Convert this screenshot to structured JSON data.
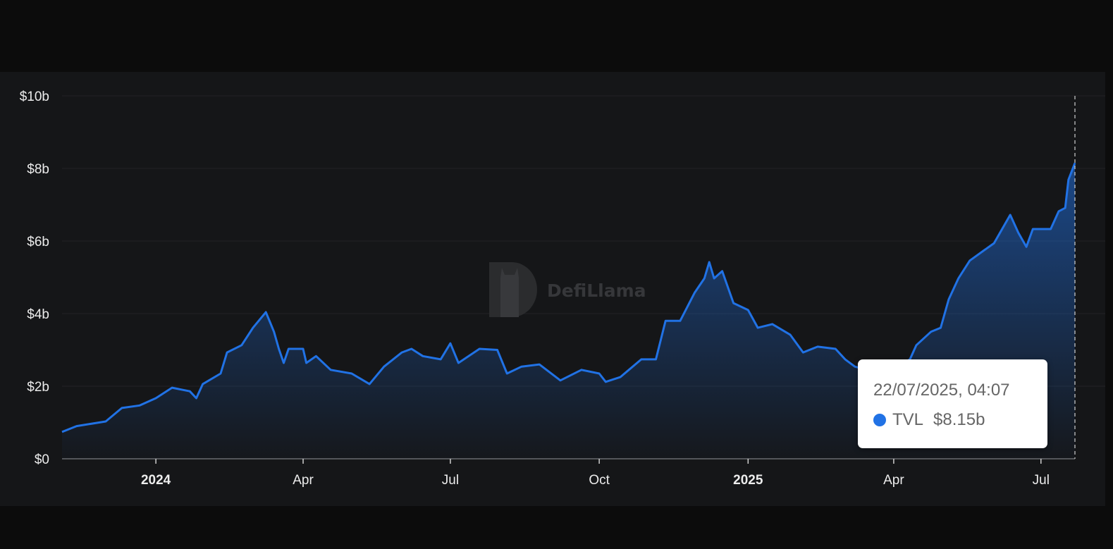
{
  "chart_data": {
    "type": "area",
    "watermark": "DefiLlama",
    "ylabel": "",
    "xlabel": "",
    "ylim": [
      0,
      10
    ],
    "y_unit": "billions USD",
    "y_ticks": [
      {
        "value": 0,
        "label": "$0"
      },
      {
        "value": 2,
        "label": "$2b"
      },
      {
        "value": 4,
        "label": "$4b"
      },
      {
        "value": 6,
        "label": "$6b"
      },
      {
        "value": 8,
        "label": "$8b"
      },
      {
        "value": 10,
        "label": "$10b"
      }
    ],
    "x_range": [
      "2023-11-04",
      "2025-07-22"
    ],
    "x_ticks": [
      {
        "date": "2024-01-01",
        "label": "2024",
        "bold": true
      },
      {
        "date": "2024-04-01",
        "label": "Apr",
        "bold": false
      },
      {
        "date": "2024-07-01",
        "label": "Jul",
        "bold": false
      },
      {
        "date": "2024-10-01",
        "label": "Oct",
        "bold": false
      },
      {
        "date": "2025-01-01",
        "label": "2025",
        "bold": true
      },
      {
        "date": "2025-04-01",
        "label": "Apr",
        "bold": false
      },
      {
        "date": "2025-07-01",
        "label": "Jul",
        "bold": false
      }
    ],
    "grid": true,
    "colors": {
      "line": "#2172e5",
      "background": "#151618",
      "grid": "#222326"
    },
    "series": [
      {
        "name": "TVL",
        "points": [
          [
            "2023-11-04",
            0.74
          ],
          [
            "2023-11-13",
            0.9
          ],
          [
            "2023-12-01",
            1.03
          ],
          [
            "2023-12-11",
            1.4
          ],
          [
            "2023-12-22",
            1.47
          ],
          [
            "2024-01-01",
            1.67
          ],
          [
            "2024-01-11",
            1.96
          ],
          [
            "2024-01-22",
            1.86
          ],
          [
            "2024-01-26",
            1.67
          ],
          [
            "2024-01-30",
            2.06
          ],
          [
            "2024-02-10",
            2.35
          ],
          [
            "2024-02-14",
            2.93
          ],
          [
            "2024-02-23",
            3.13
          ],
          [
            "2024-03-01",
            3.61
          ],
          [
            "2024-03-09",
            4.04
          ],
          [
            "2024-03-14",
            3.5
          ],
          [
            "2024-03-17",
            3.03
          ],
          [
            "2024-03-20",
            2.64
          ],
          [
            "2024-03-23",
            3.03
          ],
          [
            "2024-04-01",
            3.03
          ],
          [
            "2024-04-03",
            2.64
          ],
          [
            "2024-04-09",
            2.83
          ],
          [
            "2024-04-18",
            2.45
          ],
          [
            "2024-05-01",
            2.35
          ],
          [
            "2024-05-12",
            2.06
          ],
          [
            "2024-05-21",
            2.54
          ],
          [
            "2024-06-01",
            2.93
          ],
          [
            "2024-06-07",
            3.03
          ],
          [
            "2024-06-14",
            2.83
          ],
          [
            "2024-06-25",
            2.74
          ],
          [
            "2024-07-01",
            3.18
          ],
          [
            "2024-07-06",
            2.64
          ],
          [
            "2024-07-19",
            3.03
          ],
          [
            "2024-07-30",
            3.0
          ],
          [
            "2024-08-05",
            2.35
          ],
          [
            "2024-08-14",
            2.54
          ],
          [
            "2024-08-25",
            2.6
          ],
          [
            "2024-09-07",
            2.16
          ],
          [
            "2024-09-20",
            2.45
          ],
          [
            "2024-10-01",
            2.35
          ],
          [
            "2024-10-05",
            2.12
          ],
          [
            "2024-10-14",
            2.25
          ],
          [
            "2024-10-27",
            2.74
          ],
          [
            "2024-11-05",
            2.74
          ],
          [
            "2024-11-11",
            3.8
          ],
          [
            "2024-11-20",
            3.8
          ],
          [
            "2024-11-29",
            4.58
          ],
          [
            "2024-12-05",
            4.97
          ],
          [
            "2024-12-08",
            5.42
          ],
          [
            "2024-12-11",
            4.97
          ],
          [
            "2024-12-16",
            5.17
          ],
          [
            "2024-12-23",
            4.29
          ],
          [
            "2025-01-01",
            4.1
          ],
          [
            "2025-01-07",
            3.61
          ],
          [
            "2025-01-16",
            3.71
          ],
          [
            "2025-01-27",
            3.42
          ],
          [
            "2025-02-04",
            2.93
          ],
          [
            "2025-02-13",
            3.09
          ],
          [
            "2025-02-24",
            3.03
          ],
          [
            "2025-03-02",
            2.74
          ],
          [
            "2025-03-08",
            2.54
          ],
          [
            "2025-03-19",
            2.4
          ],
          [
            "2025-04-01",
            2.5
          ],
          [
            "2025-04-11",
            2.74
          ],
          [
            "2025-04-15",
            3.13
          ],
          [
            "2025-04-24",
            3.5
          ],
          [
            "2025-04-30",
            3.61
          ],
          [
            "2025-05-05",
            4.39
          ],
          [
            "2025-05-11",
            4.97
          ],
          [
            "2025-05-18",
            5.46
          ],
          [
            "2025-05-27",
            5.75
          ],
          [
            "2025-06-02",
            5.94
          ],
          [
            "2025-06-12",
            6.72
          ],
          [
            "2025-06-17",
            6.23
          ],
          [
            "2025-06-22",
            5.84
          ],
          [
            "2025-06-26",
            6.33
          ],
          [
            "2025-07-07",
            6.33
          ],
          [
            "2025-07-12",
            6.82
          ],
          [
            "2025-07-16",
            6.91
          ],
          [
            "2025-07-18",
            7.69
          ],
          [
            "2025-07-22",
            8.15
          ]
        ]
      }
    ],
    "tooltip": {
      "date": "22/07/2025, 04:07",
      "series": "TVL",
      "value": "$8.15b",
      "color": "#2172e5"
    }
  }
}
